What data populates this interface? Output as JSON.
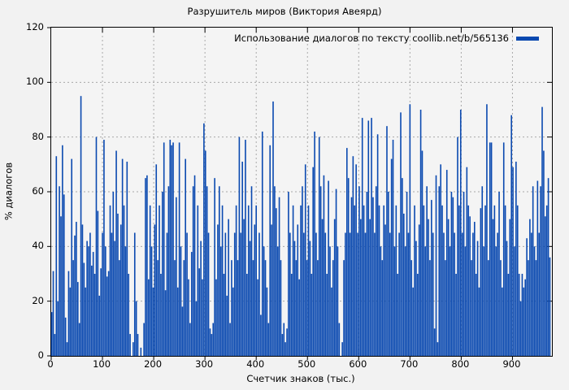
{
  "figure": {
    "background": "#f2f2f2",
    "plot_background": "#f4f4f4",
    "text_color": "#000000"
  },
  "chart_data": {
    "type": "bar",
    "title": "Разрушитель миров (Виктория Авеярд)",
    "legend": "Использование диалогов по тексту coollib.net/b/565136",
    "legend_position": "top-right-inside",
    "xlabel": "Счетчик знаков (тыс.)",
    "ylabel": "% диалогов",
    "xlim": [
      0,
      977
    ],
    "ylim": [
      0,
      120
    ],
    "x_ticks": [
      0,
      100,
      200,
      300,
      400,
      500,
      600,
      700,
      800,
      900
    ],
    "y_ticks": [
      0,
      20,
      40,
      60,
      80,
      100,
      120
    ],
    "grid": true,
    "grid_style": "dashed",
    "grid_color": "#a9a9a9",
    "bar_color": "#0a49b0",
    "axis_color": "#000000",
    "x_start": 1,
    "x_step": 3,
    "values": [
      16,
      31,
      8,
      73,
      20,
      62,
      51,
      77,
      59,
      14,
      5,
      31,
      25,
      72,
      35,
      44,
      49,
      27,
      12,
      95,
      48,
      34,
      25,
      42,
      40,
      45,
      33,
      38,
      30,
      80,
      53,
      22,
      32,
      45,
      79,
      40,
      29,
      31,
      55,
      45,
      60,
      42,
      75,
      52,
      35,
      48,
      72,
      55,
      40,
      71,
      30,
      8,
      0,
      5,
      45,
      20,
      8,
      0,
      3,
      0,
      12,
      65,
      66,
      28,
      55,
      40,
      25,
      48,
      70,
      35,
      55,
      30,
      60,
      78,
      24,
      45,
      62,
      79,
      77,
      78,
      35,
      58,
      25,
      78,
      40,
      18,
      35,
      72,
      45,
      28,
      12,
      38,
      62,
      66,
      20,
      55,
      32,
      42,
      28,
      85,
      75,
      62,
      45,
      10,
      8,
      12,
      65,
      28,
      48,
      62,
      40,
      55,
      30,
      45,
      22,
      50,
      12,
      35,
      25,
      45,
      55,
      35,
      80,
      45,
      71,
      50,
      79,
      30,
      55,
      42,
      62,
      35,
      48,
      55,
      28,
      45,
      15,
      82,
      40,
      35,
      25,
      12,
      77,
      48,
      93,
      62,
      54,
      40,
      58,
      35,
      8,
      12,
      5,
      10,
      60,
      45,
      30,
      55,
      42,
      35,
      48,
      28,
      55,
      62,
      45,
      70,
      35,
      55,
      42,
      30,
      69,
      82,
      45,
      35,
      80,
      62,
      50,
      66,
      45,
      30,
      64,
      40,
      25,
      35,
      50,
      61,
      40,
      12,
      0,
      5,
      35,
      45,
      76,
      65,
      45,
      58,
      73,
      55,
      70,
      45,
      62,
      50,
      87,
      55,
      45,
      60,
      86,
      50,
      87,
      58,
      45,
      62,
      81,
      55,
      40,
      35,
      55,
      48,
      84,
      60,
      45,
      72,
      79,
      40,
      55,
      30,
      45,
      89,
      65,
      52,
      40,
      60,
      45,
      92,
      35,
      25,
      55,
      42,
      30,
      48,
      90,
      75,
      55,
      40,
      62,
      50,
      35,
      57,
      45,
      10,
      66,
      5,
      62,
      70,
      55,
      45,
      35,
      68,
      50,
      40,
      60,
      58,
      45,
      30,
      80,
      55,
      90,
      45,
      60,
      40,
      69,
      55,
      51,
      35,
      45,
      49,
      30,
      42,
      25,
      54,
      62,
      40,
      55,
      92,
      35,
      78,
      78,
      50,
      55,
      40,
      45,
      60,
      35,
      25,
      78,
      55,
      42,
      30,
      50,
      88,
      69,
      40,
      71,
      55,
      30,
      20,
      30,
      25,
      28,
      43,
      35,
      50,
      45,
      62,
      40,
      35,
      64,
      45,
      62,
      91,
      75,
      51,
      55,
      65,
      36
    ]
  }
}
